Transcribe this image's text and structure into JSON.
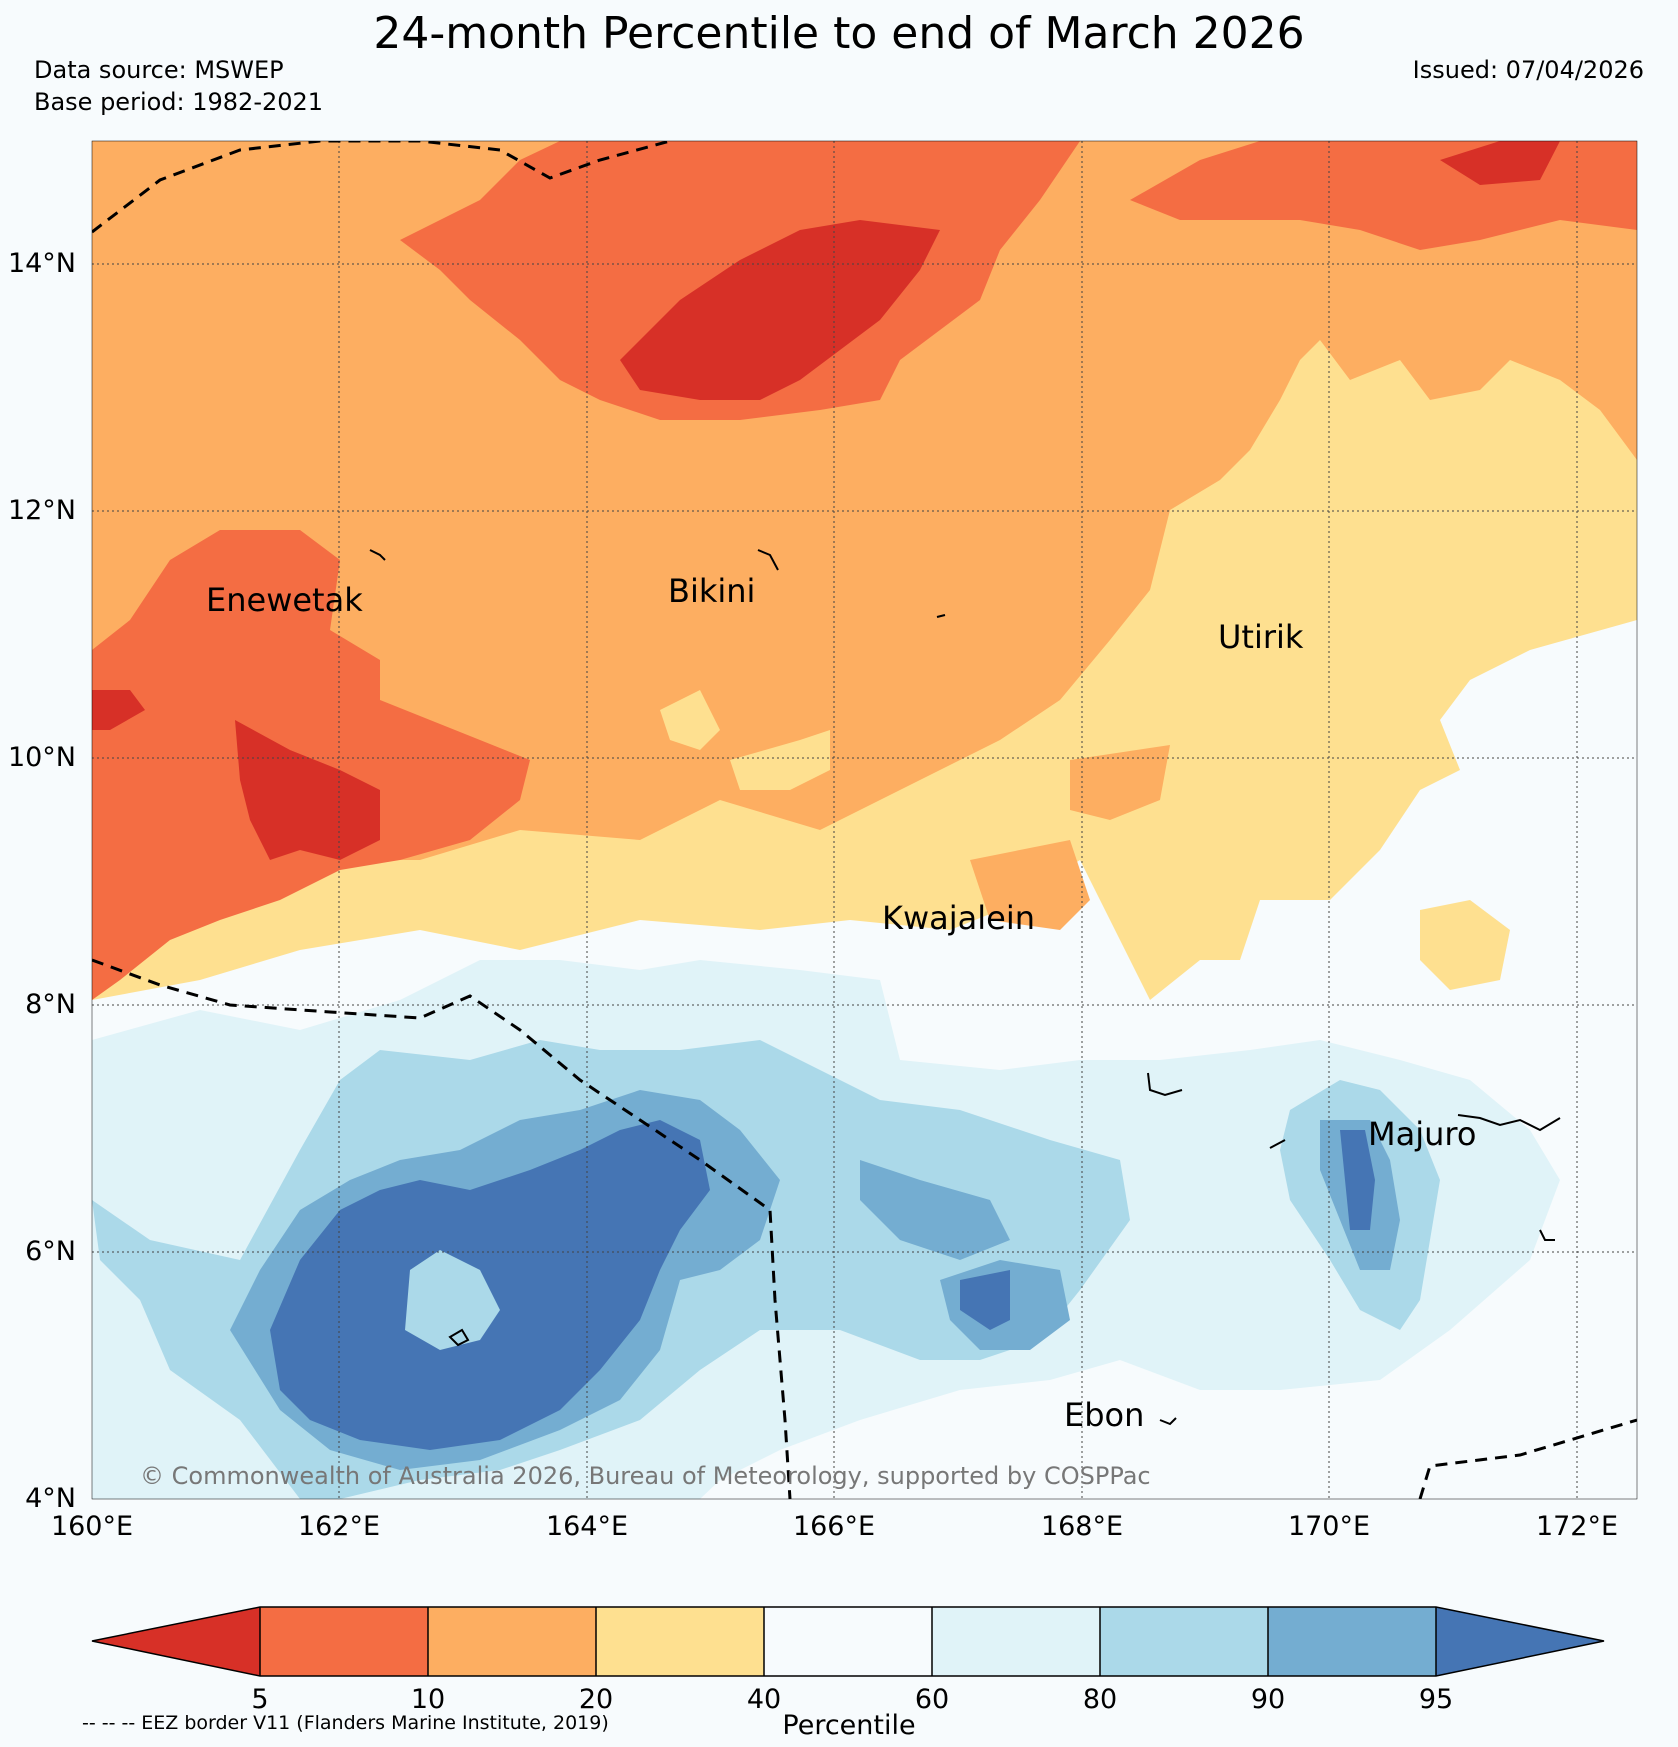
{
  "header": {
    "title": "24-month Percentile to end of March 2026",
    "data_source": "Data source: MSWEP",
    "base_period": "Base period: 1982-2021",
    "issued": "Issued: 07/04/2026"
  },
  "map": {
    "lon_ticks": [
      "160°E",
      "162°E",
      "164°E",
      "166°E",
      "168°E",
      "170°E",
      "172°E"
    ],
    "lat_ticks": [
      "14°N",
      "12°N",
      "10°N",
      "8°N",
      "6°N",
      "4°N"
    ],
    "places": [
      {
        "name": "Enewetak"
      },
      {
        "name": "Bikini"
      },
      {
        "name": "Utirik"
      },
      {
        "name": "Kwajalein"
      },
      {
        "name": "Majuro"
      },
      {
        "name": "Ebon"
      }
    ],
    "copyright": "© Commonwealth of Australia 2026, Bureau of Meteorology, supported by COSPPac"
  },
  "colorbar": {
    "ticks": [
      "5",
      "10",
      "20",
      "40",
      "60",
      "80",
      "90",
      "95"
    ],
    "colors": [
      "#d73027",
      "#f46d43",
      "#fdae61",
      "#fee090",
      "#f7fbfd",
      "#e0f3f8",
      "#abd9e9",
      "#74add1",
      "#4575b4"
    ],
    "label": "Percentile"
  },
  "footer": {
    "eez_note": "-- -- -- EEZ border V11 (Flanders Marine Institute, 2019)"
  }
}
